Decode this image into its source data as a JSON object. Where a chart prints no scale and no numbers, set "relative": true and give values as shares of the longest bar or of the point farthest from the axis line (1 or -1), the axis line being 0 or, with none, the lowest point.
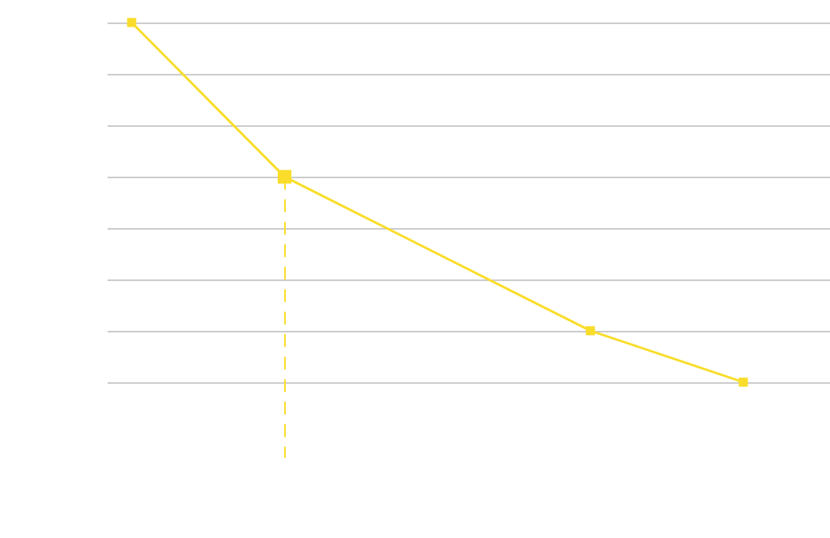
{
  "chart_data": {
    "type": "line",
    "relative": true,
    "categories": [
      null,
      null,
      null,
      null,
      null
    ],
    "series": [
      {
        "color": "#f9dd2a",
        "values": [
          1,
          0.571,
          null,
          0.143,
          0
        ]
      }
    ],
    "marker": "square",
    "grid": "y",
    "legend": false
  }
}
